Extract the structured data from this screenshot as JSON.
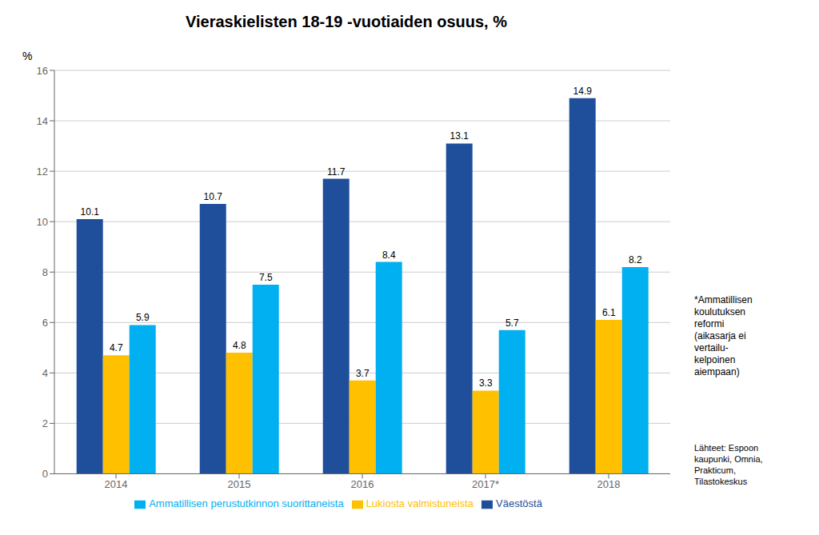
{
  "chart_data": {
    "type": "bar",
    "title": "Vieraskielisten 18-19 -vuotiaiden osuus, %",
    "ylabel": "%",
    "categories": [
      "2014",
      "2015",
      "2016",
      "2017*",
      "2018"
    ],
    "series": [
      {
        "name": "Väestöstä",
        "color": "#1F4E9B",
        "values": [
          10.1,
          10.7,
          11.7,
          13.1,
          14.9
        ]
      },
      {
        "name": "Lukiosta valmistuneista",
        "color": "#FFC000",
        "values": [
          4.7,
          4.8,
          3.7,
          3.3,
          6.1
        ]
      },
      {
        "name": "Ammatillisen perustutkinnon suorittaneista",
        "color": "#00B0F0",
        "values": [
          5.9,
          7.5,
          8.4,
          5.7,
          8.2
        ]
      }
    ],
    "ylim": [
      0,
      16
    ],
    "yticks": [
      0,
      2,
      4,
      6,
      8,
      10,
      12,
      14,
      16
    ],
    "grid": true,
    "legend": "bottom",
    "data_labels": true,
    "annotations": [
      "*Ammatillisen\nkoulutuksen\nreformi\n(aikasarja ei\nvertailu-\nkelpoinen\naiempaan)",
      "Lähteet: Espoon\nkaupunki, Omnia,\nPrakticum,\nTilastokeskus"
    ]
  }
}
